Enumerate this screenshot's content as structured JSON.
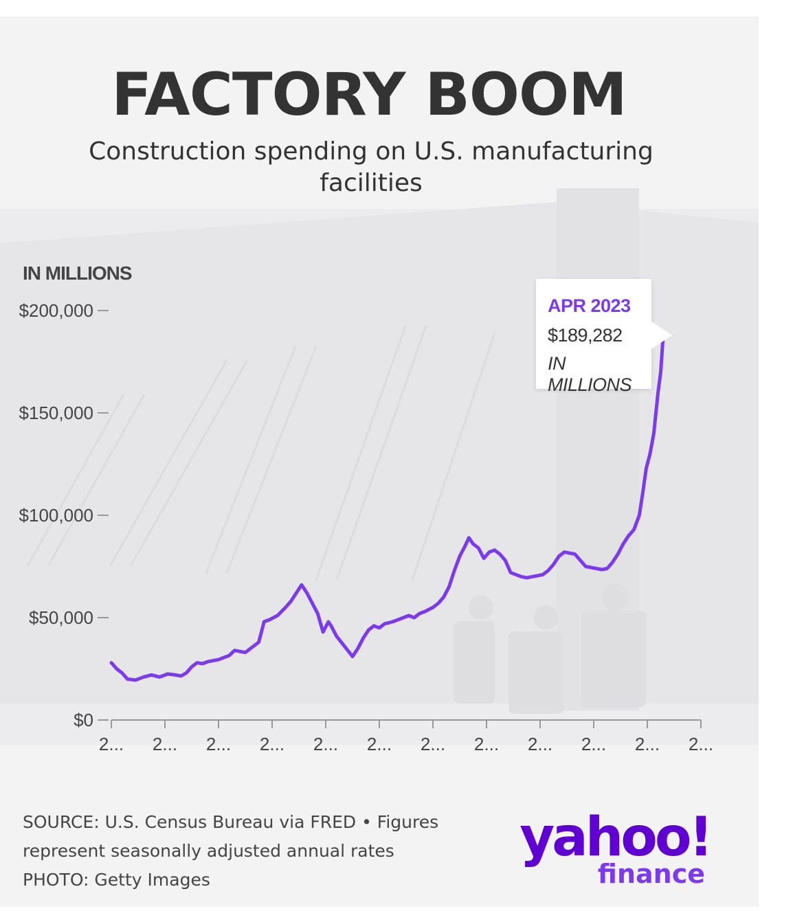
{
  "title": "FACTORY BOOM",
  "subtitle_lines": [
    "Construction spending on U.S. manufacturing",
    "facilities"
  ],
  "unit_label": "IN MILLIONS",
  "tooltip": {
    "date": "APR 2023",
    "value": "$189,282",
    "unit": "IN MILLIONS"
  },
  "source_lines": [
    "SOURCE: U.S. Census Bureau via FRED • Figures",
    "represent seasonally adjusted annual rates",
    "PHOTO: Getty Images"
  ],
  "logo": {
    "yahoo": "yahoo!",
    "finance": "finance",
    "name": "yahoo-finance-logo"
  },
  "colors": {
    "line": "#7c3aed",
    "brand": "#5f01d1",
    "text": "#333333",
    "background": "#f3f3f4"
  },
  "chart_data": {
    "type": "line",
    "ylim": [
      0,
      200000
    ],
    "y_ticks": [
      0,
      50000,
      100000,
      150000,
      200000
    ],
    "y_tick_labels": [
      "$0",
      "$50,000",
      "$100,000",
      "$150,000",
      "$200,000"
    ],
    "x_tick_labels": [
      "2...",
      "2...",
      "2...",
      "2...",
      "2...",
      "2...",
      "2...",
      "2...",
      "2...",
      "2...",
      "2...",
      "2..."
    ],
    "xlim": [
      0,
      11
    ],
    "grid": false,
    "series": [
      {
        "points": [
          [
            0.0,
            28000
          ],
          [
            0.1,
            25000
          ],
          [
            0.2,
            23000
          ],
          [
            0.3,
            20000
          ],
          [
            0.45,
            19500
          ],
          [
            0.6,
            21000
          ],
          [
            0.75,
            22000
          ],
          [
            0.9,
            21000
          ],
          [
            1.05,
            22500
          ],
          [
            1.2,
            22000
          ],
          [
            1.3,
            21500
          ],
          [
            1.4,
            23000
          ],
          [
            1.5,
            26000
          ],
          [
            1.6,
            28000
          ],
          [
            1.7,
            27500
          ],
          [
            1.8,
            28500
          ],
          [
            1.9,
            29000
          ],
          [
            2.0,
            29500
          ],
          [
            2.1,
            30500
          ],
          [
            2.2,
            31500
          ],
          [
            2.3,
            34000
          ],
          [
            2.4,
            33500
          ],
          [
            2.5,
            33000
          ],
          [
            2.6,
            35000
          ],
          [
            2.75,
            38000
          ],
          [
            2.85,
            48000
          ],
          [
            2.95,
            49000
          ],
          [
            3.1,
            51000
          ],
          [
            3.25,
            55000
          ],
          [
            3.35,
            58000
          ],
          [
            3.45,
            62000
          ],
          [
            3.55,
            66000
          ],
          [
            3.65,
            62000
          ],
          [
            3.75,
            57000
          ],
          [
            3.85,
            52000
          ],
          [
            3.95,
            43000
          ],
          [
            4.05,
            48000
          ],
          [
            4.1,
            46000
          ],
          [
            4.2,
            41000
          ],
          [
            4.35,
            36000
          ],
          [
            4.5,
            31000
          ],
          [
            4.6,
            35000
          ],
          [
            4.7,
            40000
          ],
          [
            4.8,
            44000
          ],
          [
            4.9,
            46000
          ],
          [
            5.0,
            45000
          ],
          [
            5.1,
            47000
          ],
          [
            5.25,
            48000
          ],
          [
            5.4,
            49500
          ],
          [
            5.55,
            51000
          ],
          [
            5.65,
            50000
          ],
          [
            5.75,
            52000
          ],
          [
            5.85,
            53000
          ],
          [
            6.0,
            55000
          ],
          [
            6.1,
            57000
          ],
          [
            6.2,
            60000
          ],
          [
            6.3,
            65000
          ],
          [
            6.4,
            73000
          ],
          [
            6.5,
            80000
          ],
          [
            6.6,
            85000
          ],
          [
            6.67,
            89000
          ],
          [
            6.75,
            86000
          ],
          [
            6.85,
            84000
          ],
          [
            6.95,
            79000
          ],
          [
            7.05,
            82000
          ],
          [
            7.15,
            83000
          ],
          [
            7.25,
            81000
          ],
          [
            7.35,
            78000
          ],
          [
            7.45,
            72000
          ],
          [
            7.55,
            71000
          ],
          [
            7.65,
            70000
          ],
          [
            7.75,
            69500
          ],
          [
            7.85,
            70000
          ],
          [
            7.95,
            70500
          ],
          [
            8.05,
            71000
          ],
          [
            8.15,
            73000
          ],
          [
            8.25,
            76000
          ],
          [
            8.35,
            80000
          ],
          [
            8.45,
            82000
          ],
          [
            8.55,
            81500
          ],
          [
            8.65,
            81000
          ],
          [
            8.75,
            78000
          ],
          [
            8.85,
            75000
          ],
          [
            8.95,
            74500
          ],
          [
            9.05,
            74000
          ],
          [
            9.15,
            73500
          ],
          [
            9.25,
            74000
          ],
          [
            9.35,
            77000
          ],
          [
            9.45,
            81000
          ],
          [
            9.55,
            86000
          ],
          [
            9.65,
            90000
          ],
          [
            9.75,
            93000
          ],
          [
            9.85,
            100000
          ],
          [
            9.92,
            112000
          ],
          [
            9.98,
            123000
          ],
          [
            10.05,
            130000
          ],
          [
            10.12,
            140000
          ],
          [
            10.2,
            160000
          ],
          [
            10.25,
            170000
          ],
          [
            10.3,
            189282
          ]
        ]
      }
    ],
    "annotation": {
      "label": "APR 2023",
      "value": 189282,
      "x": 10.3
    }
  }
}
